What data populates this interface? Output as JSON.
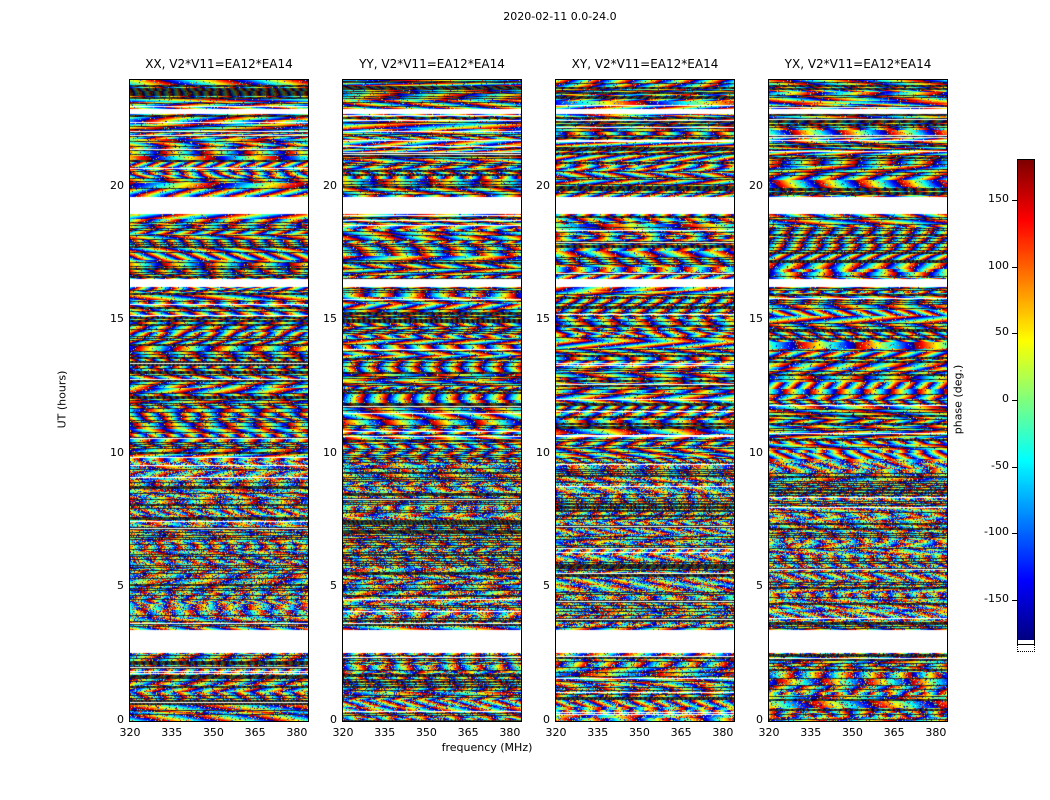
{
  "figure": {
    "background": "#ffffff"
  },
  "chart_data": {
    "type": "heatmap",
    "title": "2020-02-11 0.0-24.0",
    "xlabel": "frequency (MHz)",
    "ylabel": "UT (hours)",
    "xlim": [
      320,
      384
    ],
    "ylim": [
      0,
      24
    ],
    "xticks": [
      320,
      335,
      350,
      365,
      380
    ],
    "yticks": [
      0,
      5,
      10,
      15,
      20
    ],
    "grid": false,
    "panels": [
      {
        "title": "XX, V2*V11=EA12*EA14",
        "pol": "XX"
      },
      {
        "title": "YY, V2*V11=EA12*EA14",
        "pol": "YY"
      },
      {
        "title": "XY, V2*V11=EA12*EA14",
        "pol": "XY"
      },
      {
        "title": "YX, V2*V11=EA12*EA14",
        "pol": "YX"
      }
    ],
    "colorbar": {
      "label": "phase (deg.)",
      "ticks": [
        150,
        100,
        50,
        0,
        -50,
        -100,
        -150
      ],
      "vmin": -180,
      "vmax": 180,
      "colormap": "jet"
    },
    "flagged_ut_ranges": [
      [
        2.58,
        3.44
      ],
      [
        16.25,
        16.55
      ],
      [
        19.0,
        19.62
      ],
      [
        22.75,
        22.95
      ]
    ],
    "content_note": "Wrapped interferometric visibility phase (deg) versus frequency (x) and UT time (y) for baseline EA12-EA14 in four polarization products; data appears as noise-like horizontal rainbow striping with white flagged time ranges."
  }
}
